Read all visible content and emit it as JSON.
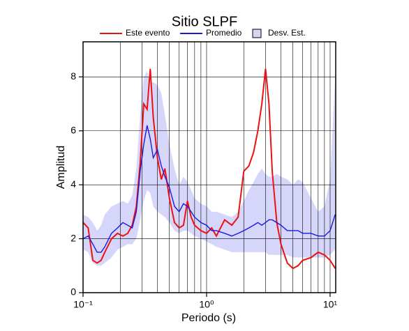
{
  "chart_data": {
    "type": "line",
    "title": "Sitio SLPF",
    "x_label": "Periodo (s)",
    "y_label": "Amplitud",
    "xscale": "log",
    "grid": true,
    "xlim": [
      0.1,
      11.1
    ],
    "ylim": [
      0,
      9.3
    ],
    "xticks": [
      {
        "value": 0.1,
        "label": "10⁻¹"
      },
      {
        "value": 1,
        "label": "10⁰"
      },
      {
        "value": 10,
        "label": "10¹"
      }
    ],
    "xminor": [
      0.2,
      0.3,
      0.4,
      0.5,
      0.6,
      0.7,
      0.8,
      0.9,
      2,
      3,
      4,
      5,
      6,
      7,
      8,
      9
    ],
    "yticks": [
      0,
      2,
      4,
      6,
      8
    ],
    "x": [
      0.1,
      0.11,
      0.12,
      0.13,
      0.14,
      0.15,
      0.17,
      0.19,
      0.21,
      0.23,
      0.25,
      0.27,
      0.29,
      0.31,
      0.33,
      0.35,
      0.37,
      0.4,
      0.43,
      0.46,
      0.5,
      0.55,
      0.6,
      0.65,
      0.7,
      0.75,
      0.8,
      0.9,
      1.0,
      1.1,
      1.2,
      1.4,
      1.6,
      1.8,
      2.0,
      2.2,
      2.4,
      2.6,
      2.8,
      3.0,
      3.2,
      3.4,
      3.7,
      4.0,
      4.5,
      5,
      5.5,
      6,
      7,
      8,
      9,
      10,
      11
    ],
    "band": {
      "name": "Desv. Est.",
      "color": "#d6d6fa",
      "upper": [
        2.9,
        2.8,
        2.6,
        2.3,
        2.5,
        2.9,
        3.2,
        3.3,
        3.4,
        3.3,
        3.6,
        4.6,
        6.6,
        8.0,
        8.2,
        7.8,
        7.8,
        7.7,
        7.4,
        6.6,
        5.5,
        4.6,
        4.0,
        4.3,
        4.1,
        3.8,
        3.5,
        3.3,
        3.2,
        3.0,
        3.0,
        2.9,
        2.8,
        3.0,
        3.4,
        3.8,
        4.1,
        4.4,
        4.6,
        4.4,
        4.3,
        4.3,
        4.4,
        4.3,
        4.2,
        4.0,
        4.2,
        4.1,
        3.5,
        3.0,
        3.2,
        4.2,
        8.0
      ],
      "lower": [
        1.6,
        1.5,
        1.1,
        1.0,
        1.0,
        1.1,
        1.3,
        1.6,
        1.7,
        1.8,
        1.8,
        2.0,
        2.7,
        3.4,
        3.8,
        3.7,
        3.2,
        3.0,
        2.9,
        2.8,
        2.6,
        2.3,
        2.2,
        2.3,
        2.3,
        2.2,
        2.1,
        2.0,
        1.9,
        1.8,
        1.7,
        1.6,
        1.5,
        1.5,
        1.5,
        1.5,
        1.5,
        1.5,
        1.5,
        1.5,
        1.4,
        1.4,
        1.4,
        1.4,
        1.4,
        1.3,
        1.3,
        1.3,
        1.3,
        1.3,
        1.3,
        1.4,
        1.6
      ]
    },
    "series": [
      {
        "name": "Este evento",
        "color": "#ee1111",
        "values": [
          2.6,
          2.4,
          1.2,
          1.1,
          1.2,
          1.5,
          2.0,
          2.2,
          2.1,
          2.2,
          2.5,
          3.2,
          4.8,
          7.0,
          6.8,
          8.3,
          6.5,
          5.0,
          4.2,
          4.6,
          3.5,
          2.6,
          2.4,
          2.5,
          3.4,
          2.8,
          2.5,
          2.3,
          2.2,
          2.4,
          2.1,
          2.7,
          2.5,
          2.8,
          4.5,
          4.7,
          5.2,
          6.0,
          7.0,
          8.3,
          7.0,
          4.5,
          2.6,
          1.8,
          1.1,
          0.9,
          1.0,
          1.2,
          1.3,
          1.5,
          1.4,
          1.2,
          0.9
        ]
      },
      {
        "name": "Promedio",
        "color": "#1a1ae0",
        "values": [
          2.0,
          2.1,
          1.8,
          1.5,
          1.5,
          1.7,
          2.2,
          2.4,
          2.6,
          2.5,
          2.4,
          3.0,
          4.5,
          5.5,
          6.2,
          5.7,
          5.0,
          5.3,
          4.7,
          4.3,
          3.9,
          3.2,
          3.0,
          3.3,
          3.2,
          3.0,
          2.8,
          2.6,
          2.5,
          2.3,
          2.3,
          2.2,
          2.1,
          2.2,
          2.3,
          2.4,
          2.5,
          2.6,
          2.5,
          2.6,
          2.7,
          2.7,
          2.6,
          2.5,
          2.3,
          2.3,
          2.3,
          2.2,
          2.2,
          2.1,
          2.1,
          2.3,
          2.9
        ]
      }
    ]
  }
}
